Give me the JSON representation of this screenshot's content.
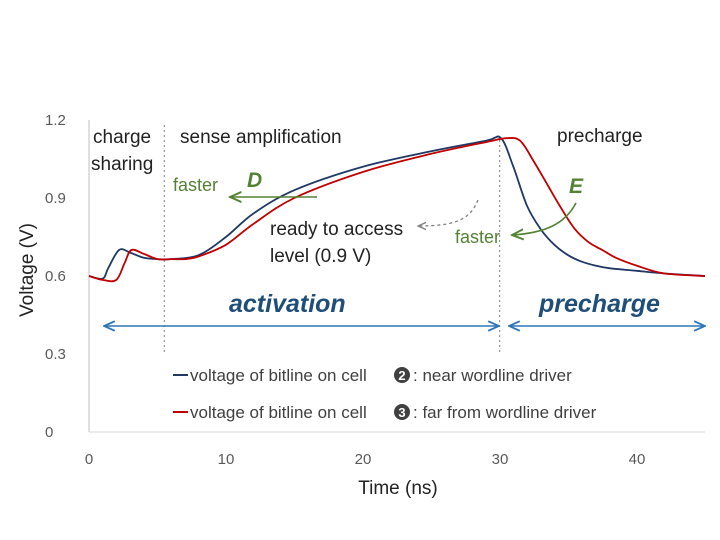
{
  "chart_data": {
    "type": "line",
    "title": "",
    "xlabel": "Time (ns)",
    "ylabel": "Voltage (V)",
    "xlim": [
      0,
      45
    ],
    "ylim": [
      0,
      1.2
    ],
    "xticks": [
      "0",
      "10",
      "20",
      "30",
      "40"
    ],
    "yticks": [
      "0",
      "0.3",
      "0.6",
      "0.9",
      "1.2"
    ],
    "series": [
      {
        "name": "voltage of bitline on cell 2: near wordline driver",
        "color": "#1f3864",
        "x": [
          0,
          1,
          1.4,
          2.2,
          3,
          4,
          5,
          6,
          8,
          10,
          12,
          15,
          20,
          25,
          29,
          30.1,
          31,
          32,
          33,
          34,
          35,
          36,
          37,
          38,
          40,
          42,
          45
        ],
        "y": [
          0.6,
          0.59,
          0.63,
          0.7,
          0.69,
          0.67,
          0.665,
          0.665,
          0.68,
          0.75,
          0.84,
          0.93,
          1.02,
          1.08,
          1.12,
          1.13,
          1.02,
          0.87,
          0.78,
          0.72,
          0.68,
          0.655,
          0.64,
          0.63,
          0.62,
          0.61,
          0.6
        ]
      },
      {
        "name": "voltage of bitline on cell 3: far from wordline driver",
        "color": "#c00000",
        "x": [
          0,
          1,
          2,
          2.6,
          3.1,
          4,
          5,
          6,
          7,
          8,
          10,
          12,
          15,
          20,
          25,
          29,
          30.5,
          31.5,
          32.5,
          33.5,
          34.5,
          35.5,
          36.5,
          37.5,
          38.5,
          40,
          42,
          45
        ],
        "y": [
          0.6,
          0.585,
          0.585,
          0.65,
          0.7,
          0.685,
          0.665,
          0.665,
          0.665,
          0.675,
          0.72,
          0.8,
          0.9,
          1.0,
          1.07,
          1.115,
          1.13,
          1.12,
          1.04,
          0.95,
          0.86,
          0.78,
          0.73,
          0.7,
          0.67,
          0.64,
          0.61,
          0.6
        ]
      }
    ],
    "phases": {
      "charge_sharing_end": 5.5,
      "activation_end": 30
    },
    "annotations": {
      "charge_sharing_line1": "charge",
      "charge_sharing_line2": "sharing",
      "sense_amp": "sense amplification",
      "precharge_top": "precharge",
      "faster_left": "faster",
      "label_d": "D",
      "ready_line1": "ready to access",
      "ready_line2": "level (0.9 V)",
      "faster_right": "faster",
      "label_e": "E",
      "activation": "activation",
      "precharge_phase": "precharge"
    },
    "legend": [
      {
        "prefix": "voltage of bitline on cell ",
        "badge": "2",
        "suffix": ": near wordline driver",
        "color": "#1f3864"
      },
      {
        "prefix": "voltage of bitline on cell ",
        "badge": "3",
        "suffix": ": far from wordline driver",
        "color": "#c00000"
      }
    ],
    "grid": false
  }
}
